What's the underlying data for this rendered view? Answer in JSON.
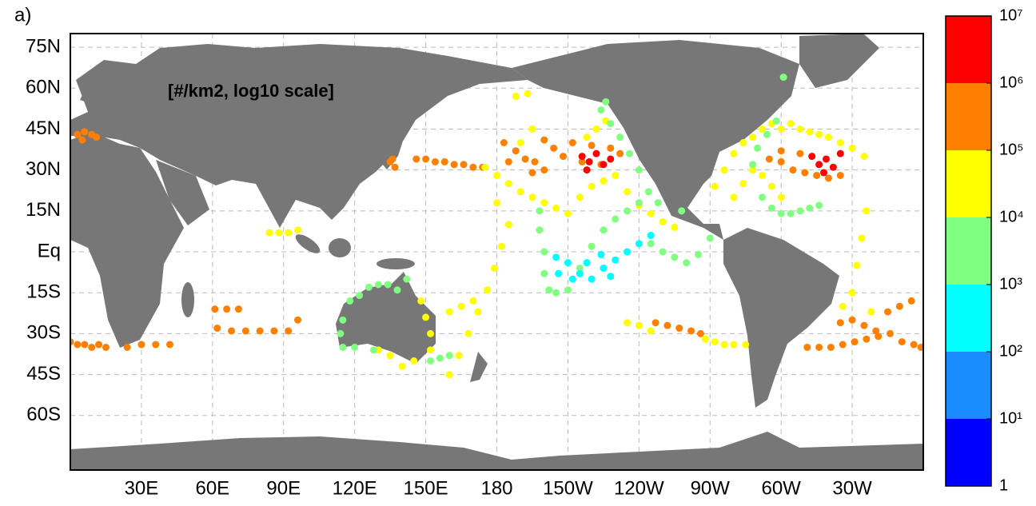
{
  "chart_data": {
    "type": "map",
    "panel_label": "a)",
    "annotation": "[#/km2, log10 scale]",
    "xlim": [
      0,
      360
    ],
    "ylim": [
      -80,
      80
    ],
    "grid": true,
    "xticks": [
      {
        "value": 30,
        "label": "30E"
      },
      {
        "value": 60,
        "label": "60E"
      },
      {
        "value": 90,
        "label": "90E"
      },
      {
        "value": 120,
        "label": "120E"
      },
      {
        "value": 150,
        "label": "150E"
      },
      180,
      {
        "value": 210,
        "label": "150W"
      },
      {
        "value": 240,
        "label": "120W"
      },
      {
        "value": 270,
        "label": "90W"
      },
      {
        "value": 300,
        "label": "60W"
      },
      {
        "value": 330,
        "label": "30W"
      }
    ],
    "yticks": [
      {
        "value": 75,
        "label": "75N"
      },
      {
        "value": 60,
        "label": "60N"
      },
      {
        "value": 45,
        "label": "45N"
      },
      {
        "value": 30,
        "label": "30N"
      },
      {
        "value": 15,
        "label": "15N"
      },
      {
        "value": 0,
        "label": "Eq"
      },
      {
        "value": -15,
        "label": "15S"
      },
      {
        "value": -30,
        "label": "30S"
      },
      {
        "value": -45,
        "label": "45S"
      },
      {
        "value": -60,
        "label": "60S"
      }
    ],
    "colorbar": {
      "lim": [
        0,
        7
      ],
      "ticks": [
        {
          "value": 0,
          "label": "1"
        },
        {
          "value": 1,
          "label": "10¹"
        },
        {
          "value": 2,
          "label": "10²"
        },
        {
          "value": 3,
          "label": "10³"
        },
        {
          "value": 4,
          "label": "10⁴"
        },
        {
          "value": 5,
          "label": "10⁵"
        },
        {
          "value": 6,
          "label": "10⁶"
        },
        {
          "value": 7,
          "label": "10⁷"
        }
      ],
      "colors": [
        "#0000ff",
        "#1a8cff",
        "#00ffff",
        "#80ff80",
        "#ffff00",
        "#ff8000",
        "#ff0000"
      ]
    },
    "groups": [
      {
        "value": 5.5,
        "lon": [
          3,
          6,
          9,
          11,
          5,
          135,
          137,
          136,
          146,
          150,
          154,
          158,
          162,
          166,
          170,
          174,
          0,
          3,
          6,
          9,
          12,
          15,
          24,
          30,
          36,
          42,
          61,
          66,
          71,
          62,
          68,
          74,
          80,
          86,
          92,
          96,
          183,
          188,
          192,
          196,
          200,
          204,
          208,
          212,
          216,
          220,
          224,
          228,
          232,
          200,
          195,
          185,
          247,
          252,
          257,
          262,
          266,
          295,
          300,
          305,
          310,
          315,
          320,
          325,
          300,
          308,
          311,
          316,
          321,
          326,
          331,
          336,
          341,
          346,
          351,
          356,
          359,
          330,
          335,
          340,
          345,
          350,
          355,
          325
        ],
        "lat": [
          43,
          44,
          43,
          42,
          41,
          33,
          31,
          34,
          34,
          34,
          33,
          33,
          32,
          32,
          31,
          31,
          -33,
          -34,
          -34,
          -35,
          -34,
          -35,
          -35,
          -34,
          -34,
          -34,
          -21,
          -21,
          -21,
          -28,
          -29,
          -29,
          -29,
          -29,
          -29,
          -25,
          40,
          37,
          34,
          33,
          41,
          38,
          35,
          40,
          33,
          39,
          32,
          38,
          36,
          30,
          29,
          33,
          -26,
          -27,
          -28,
          -29,
          -30,
          34,
          33,
          30,
          29,
          28,
          27,
          28,
          37,
          36,
          -35,
          -35,
          -35,
          -34,
          -33,
          -32,
          -31,
          -30,
          -33,
          -34,
          -35,
          -25,
          -27,
          -29,
          -22,
          -20,
          -18,
          -26
        ]
      },
      {
        "value": 6.5,
        "lon": [
          216,
          219,
          222,
          225,
          218,
          228,
          313,
          316,
          319,
          322,
          325,
          318
        ],
        "lat": [
          35,
          33,
          36,
          32,
          30,
          34,
          35,
          32,
          34,
          31,
          36,
          29
        ]
      },
      {
        "value": 4.5,
        "lon": [
          272,
          276,
          280,
          284,
          288,
          292,
          296,
          300,
          304,
          308,
          312,
          316,
          320,
          325,
          330,
          335,
          280,
          284,
          288,
          292,
          296,
          300,
          175,
          180,
          185,
          190,
          195,
          200,
          205,
          210,
          215,
          220,
          225,
          230,
          235,
          240,
          245,
          250,
          255,
          218,
          222,
          226,
          185,
          182,
          179,
          176,
          172,
          168,
          164,
          160,
          180,
          148,
          150,
          152,
          152,
          145,
          140,
          135,
          130,
          84,
          88,
          92,
          96,
          235,
          240,
          245,
          268,
          272,
          276,
          280,
          285,
          330,
          332,
          334,
          336,
          338,
          326,
          160,
          165,
          170,
          190,
          195,
          193,
          188
        ],
        "lat": [
          24,
          30,
          36,
          40,
          42,
          45,
          47,
          45,
          47,
          45,
          44,
          43,
          42,
          40,
          38,
          35,
          20,
          25,
          30,
          28,
          24,
          20,
          31,
          28,
          25,
          22,
          20,
          18,
          16,
          14,
          20,
          24,
          26,
          28,
          22,
          17,
          14,
          11,
          9,
          42,
          45,
          48,
          10,
          2,
          -6,
          -14,
          -22,
          -30,
          -38,
          -45,
          18,
          -18,
          -24,
          -30,
          -36,
          -40,
          -42,
          -38,
          -36,
          7,
          7,
          7,
          8,
          -26,
          -27,
          -29,
          -32,
          -33,
          -34,
          -34,
          -34,
          -15,
          -5,
          5,
          15,
          -22,
          -20,
          -22,
          -20,
          -18,
          40,
          45,
          58,
          57
        ]
      },
      {
        "value": 3.5,
        "lon": [
          115,
          114,
          115,
          118,
          122,
          126,
          130,
          134,
          138,
          142,
          120,
          128,
          160,
          156,
          152,
          198,
          198,
          200,
          200,
          202,
          205,
          210,
          215,
          220,
          225,
          230,
          235,
          240,
          245,
          250,
          255,
          260,
          265,
          270,
          244,
          240,
          236,
          232,
          228,
          224,
          226,
          248,
          258,
          290,
          294,
          298,
          288,
          292,
          296,
          300,
          304,
          308,
          312,
          316,
          301
        ],
        "lat": [
          -35,
          -30,
          -25,
          -18,
          -16,
          -13,
          -12,
          -12,
          -14,
          -10,
          -35,
          -36,
          -38,
          -39,
          -40,
          15,
          8,
          0,
          -8,
          -14,
          -15,
          -14,
          -6,
          2,
          8,
          12,
          15,
          18,
          3,
          0,
          -2,
          -4,
          -1,
          5,
          22,
          30,
          36,
          42,
          47,
          52,
          55,
          18,
          15,
          38,
          43,
          48,
          32,
          20,
          16,
          14,
          14,
          15,
          16,
          17,
          64
        ]
      },
      {
        "value": 2.5,
        "lon": [
          205,
          210,
          215,
          220,
          225,
          230,
          235,
          240,
          245,
          206,
          212,
          218,
          224,
          228
        ],
        "lat": [
          -2,
          -4,
          -8,
          -10,
          -6,
          -3,
          0,
          3,
          6,
          -8,
          -10,
          -4,
          -1,
          -9
        ]
      }
    ]
  }
}
